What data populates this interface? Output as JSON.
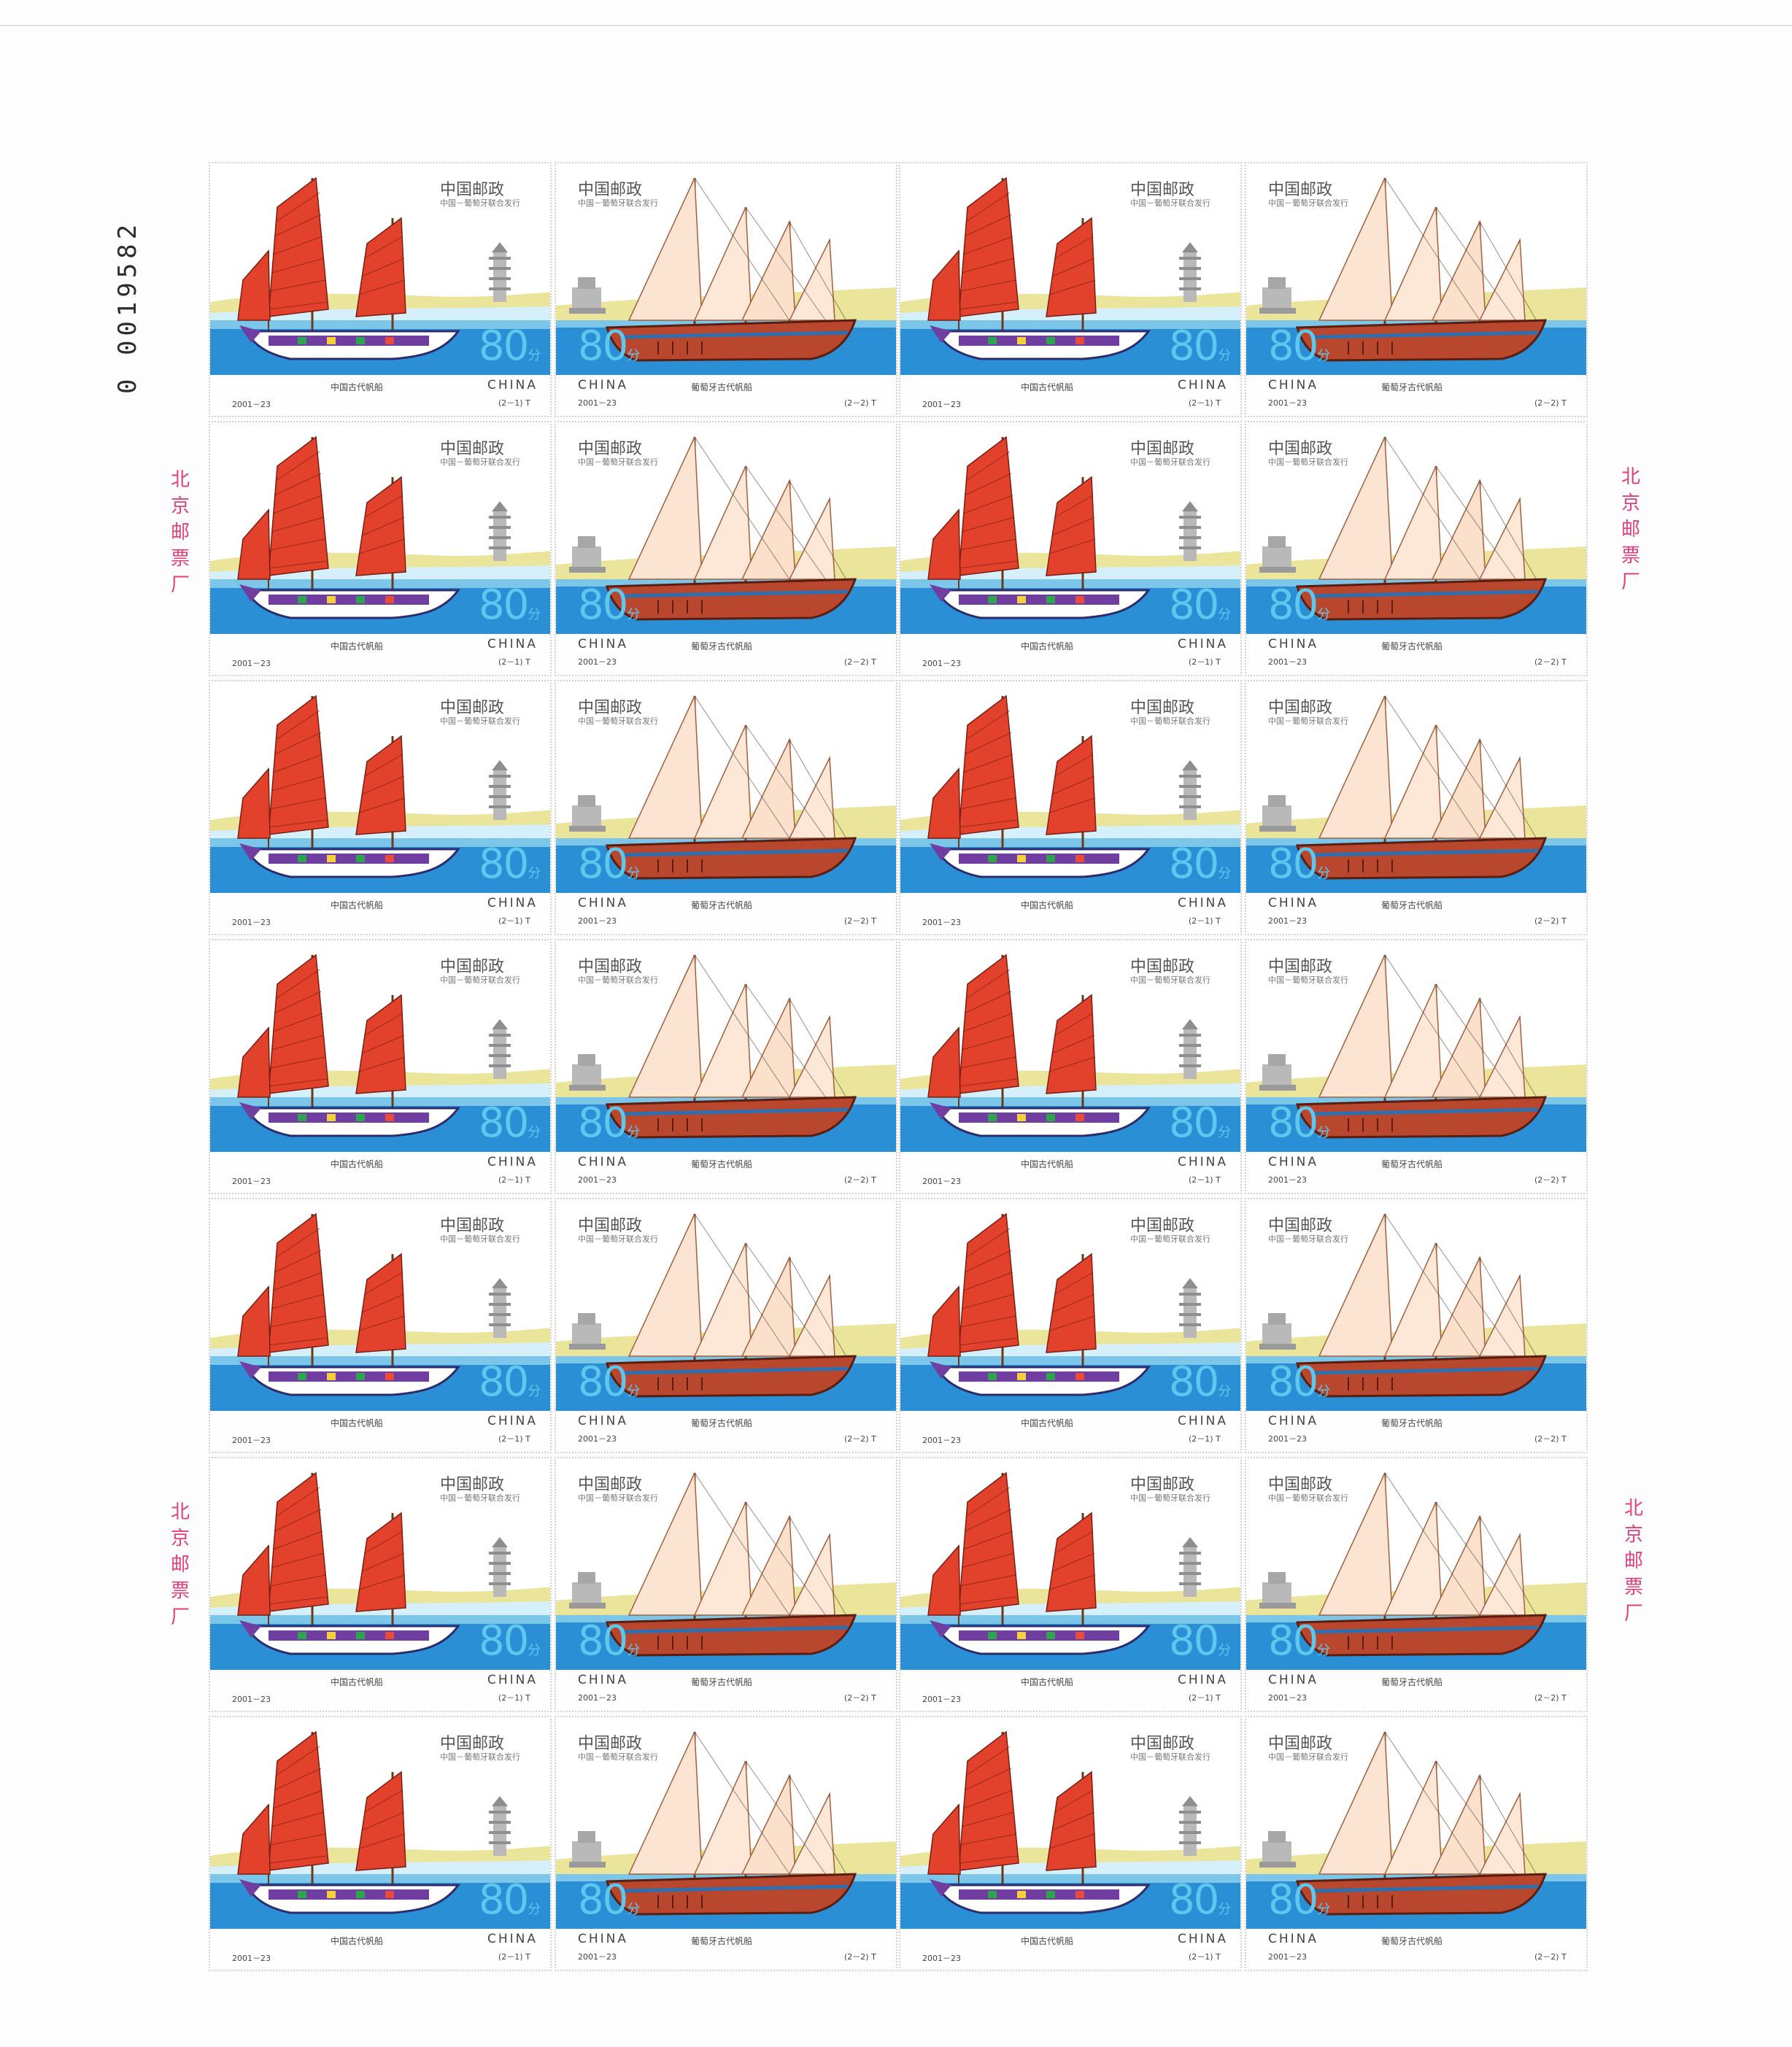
{
  "sheet": {
    "serial_number": "0 0019582",
    "factory_mark": [
      "北",
      "京",
      "邮",
      "票",
      "厂"
    ],
    "colors": {
      "sail": "#e2422c",
      "sea": "#2a8fd4",
      "shore": "#e6e08a",
      "hull_junk": "#ffffff",
      "hull_caravel": "#b8472e",
      "value": "#5fc7ee",
      "factory_mark": "#e0407a"
    }
  },
  "stamps": {
    "junk": {
      "issuer": "中国邮政",
      "issuer_sub": "中国－葡萄牙联合发行",
      "value": "80",
      "unit": "分",
      "name": "中国古代帆船",
      "country": "CHINA",
      "year": "2001－23",
      "code": "(2－1) T",
      "icon": "chinese-junk-icon"
    },
    "caravel": {
      "issuer": "中国邮政",
      "issuer_sub": "中国－葡萄牙联合发行",
      "value": "80",
      "unit": "分",
      "name": "葡萄牙古代帆船",
      "country": "CHINA",
      "year": "2001－23",
      "code": "(2－2) T",
      "icon": "portuguese-caravel-icon"
    }
  }
}
